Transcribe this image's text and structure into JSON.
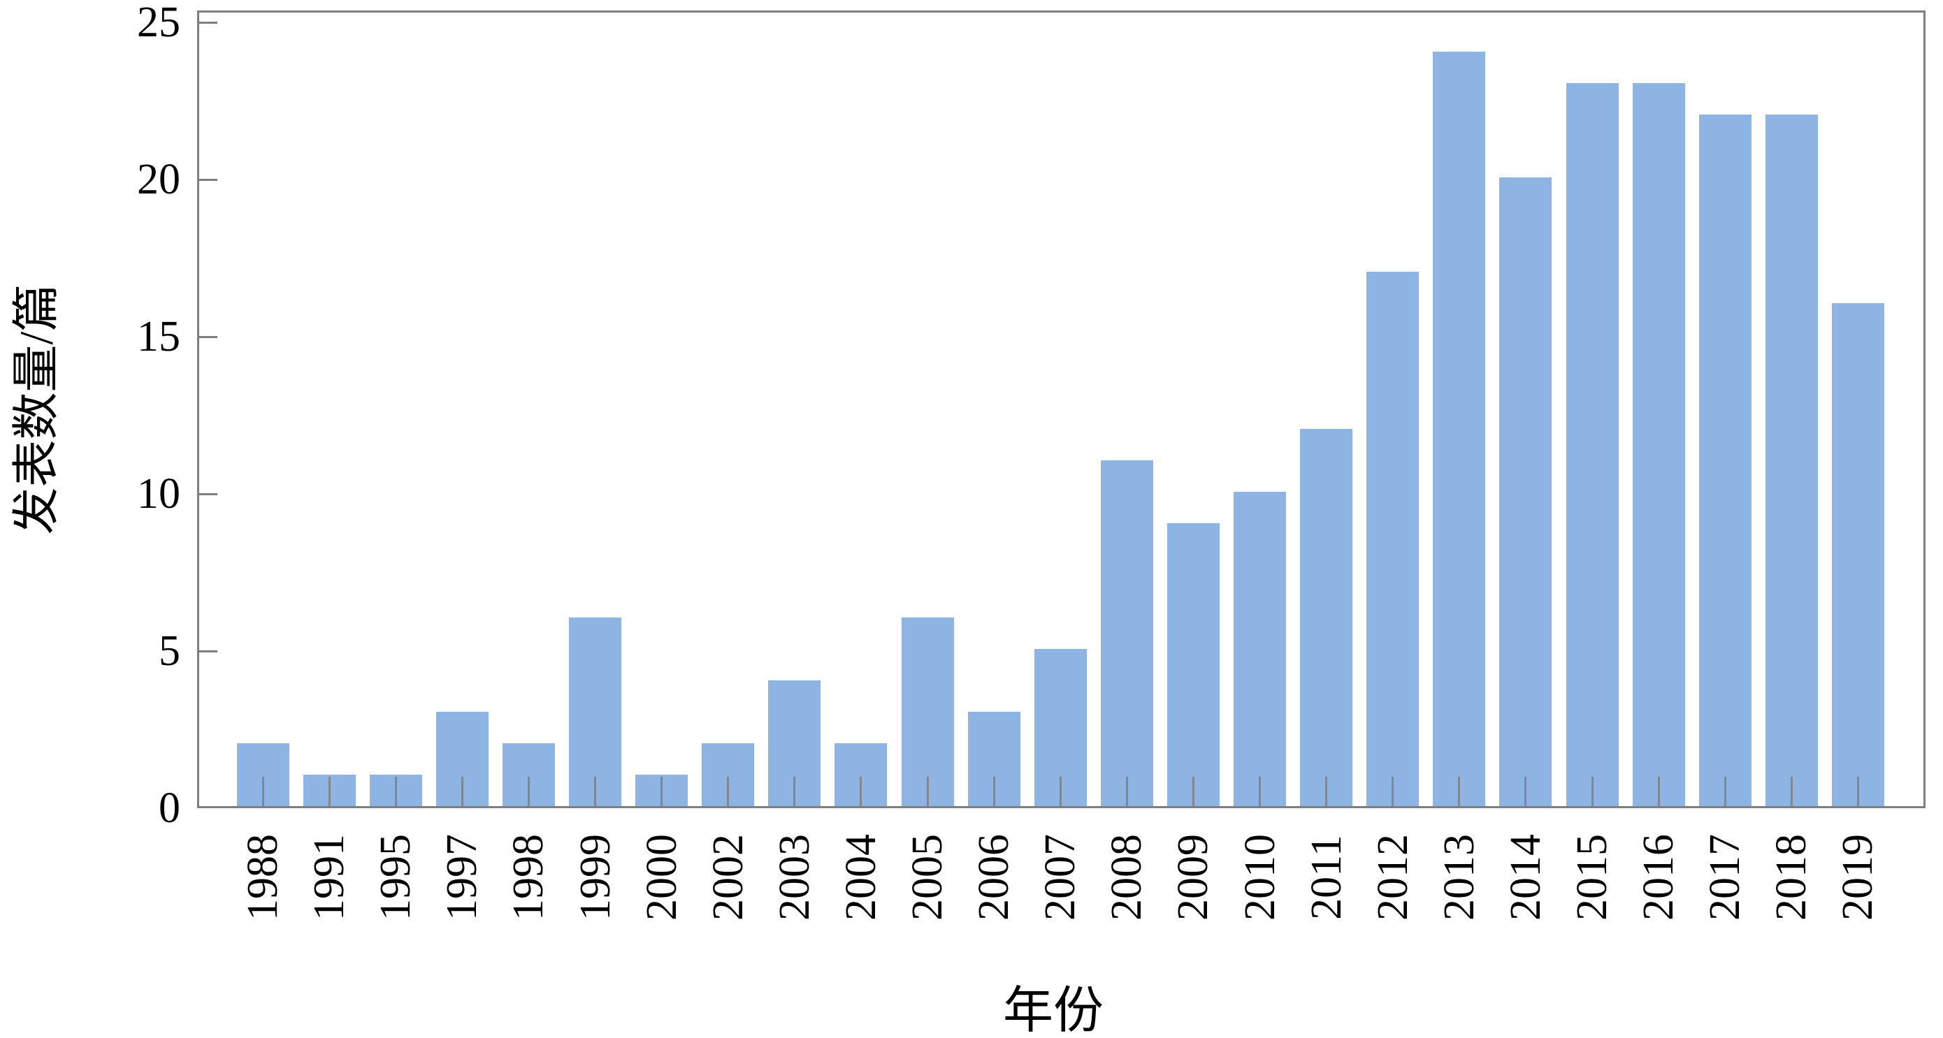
{
  "chart_data": {
    "type": "bar",
    "title": "",
    "xlabel": "年份",
    "ylabel": "发表数量/篇",
    "categories": [
      "1988",
      "1991",
      "1995",
      "1997",
      "1998",
      "1999",
      "2000",
      "2002",
      "2003",
      "2004",
      "2005",
      "2006",
      "2007",
      "2008",
      "2009",
      "2010",
      "2011",
      "2012",
      "2013",
      "2014",
      "2015",
      "2016",
      "2017",
      "2018",
      "2019"
    ],
    "values": [
      2,
      1,
      1,
      3,
      2,
      6,
      1,
      2,
      4,
      2,
      6,
      3,
      5,
      11,
      9,
      10,
      12,
      17,
      24,
      20,
      23,
      23,
      22,
      22,
      16
    ],
    "ylim": [
      0,
      25
    ],
    "yticks": [
      0,
      5,
      10,
      15,
      20,
      25
    ],
    "ytick_labels": [
      "0",
      "5",
      "10",
      "15",
      "20",
      "25"
    ],
    "grid": false,
    "legend": null,
    "bar_color": "#8DB4E2",
    "axis_color": "#7F7F7F",
    "tick_color": "#7F7F7F",
    "text_color": "#000000"
  }
}
